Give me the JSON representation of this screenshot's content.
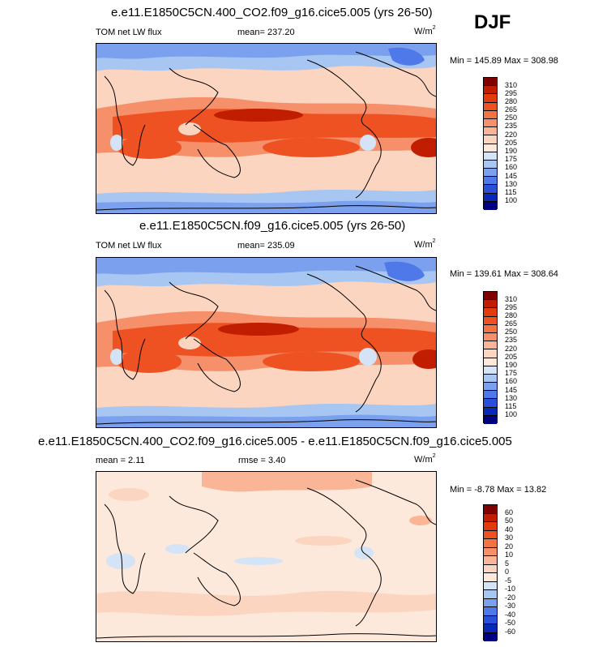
{
  "season": "DJF",
  "panels": [
    {
      "title": "e.e11.E1850C5CN.400_CO2.f09_g16.cice5.005 (yrs 26-50)",
      "variable": "TOM net LW flux",
      "stat1": "mean= 237.20",
      "stat2": "",
      "units_base": "W/m",
      "units_exp": "2",
      "minmax": "Min = 145.89 Max = 308.98"
    },
    {
      "title": "e.e11.E1850C5CN.f09_g16.cice5.005 (yrs 26-50)",
      "variable": "TOM net LW flux",
      "stat1": "mean= 235.09",
      "stat2": "",
      "units_base": "W/m",
      "units_exp": "2",
      "minmax": "Min = 139.61 Max = 308.64"
    },
    {
      "title": "e.e11.E1850C5CN.400_CO2.f09_g16.cice5.005 - e.e11.E1850C5CN.f09_g16.cice5.005",
      "variable": "",
      "stat1": "mean =   2.11",
      "stat2": "rmse =   3.40",
      "units_base": "W/m",
      "units_exp": "2",
      "minmax": "Min = -8.78 Max = 13.82"
    }
  ],
  "chart_data": [
    {
      "type": "heatmap",
      "title": "e.e11.E1850C5CN.400_CO2.f09_g16.cice5.005 (yrs 26-50)",
      "variable": "TOM net LW flux",
      "mean": 237.2,
      "min": 145.89,
      "max": 308.98,
      "units": "W/m2",
      "levels": [
        310,
        295,
        280,
        265,
        250,
        235,
        220,
        205,
        190,
        175,
        160,
        145,
        130,
        115,
        100
      ]
    },
    {
      "type": "heatmap",
      "title": "e.e11.E1850C5CN.f09_g16.cice5.005 (yrs 26-50)",
      "variable": "TOM net LW flux",
      "mean": 235.09,
      "min": 139.61,
      "max": 308.64,
      "units": "W/m2",
      "levels": [
        310,
        295,
        280,
        265,
        250,
        235,
        220,
        205,
        190,
        175,
        160,
        145,
        130,
        115,
        100
      ]
    },
    {
      "type": "heatmap",
      "title": "e.e11.E1850C5CN.400_CO2.f09_g16.cice5.005 - e.e11.E1850C5CN.f09_g16.cice5.005",
      "mean": 2.11,
      "rmse": 3.4,
      "min": -8.78,
      "max": 13.82,
      "units": "W/m2",
      "levels": [
        60,
        50,
        40,
        30,
        20,
        10,
        5,
        0,
        -5,
        -10,
        -20,
        -30,
        -40,
        -50,
        -60
      ]
    }
  ],
  "colors": {
    "abs": [
      "#800000",
      "#c11d00",
      "#e13a0c",
      "#ee5223",
      "#f27344",
      "#f6906a",
      "#f9b595",
      "#fbd5c0",
      "#fde8dc",
      "#d4e4f6",
      "#a8c6f2",
      "#7aa0ee",
      "#4f78e8",
      "#2850d8",
      "#0a28b8",
      "#000080"
    ],
    "diff": [
      "#800000",
      "#c11d00",
      "#e13a0c",
      "#ee5223",
      "#f27344",
      "#f6906a",
      "#f9b595",
      "#fbd5c0",
      "#fde8dc",
      "#d4e4f6",
      "#a8c6f2",
      "#7aa0ee",
      "#4f78e8",
      "#2850d8",
      "#0a28b8",
      "#000080"
    ]
  }
}
